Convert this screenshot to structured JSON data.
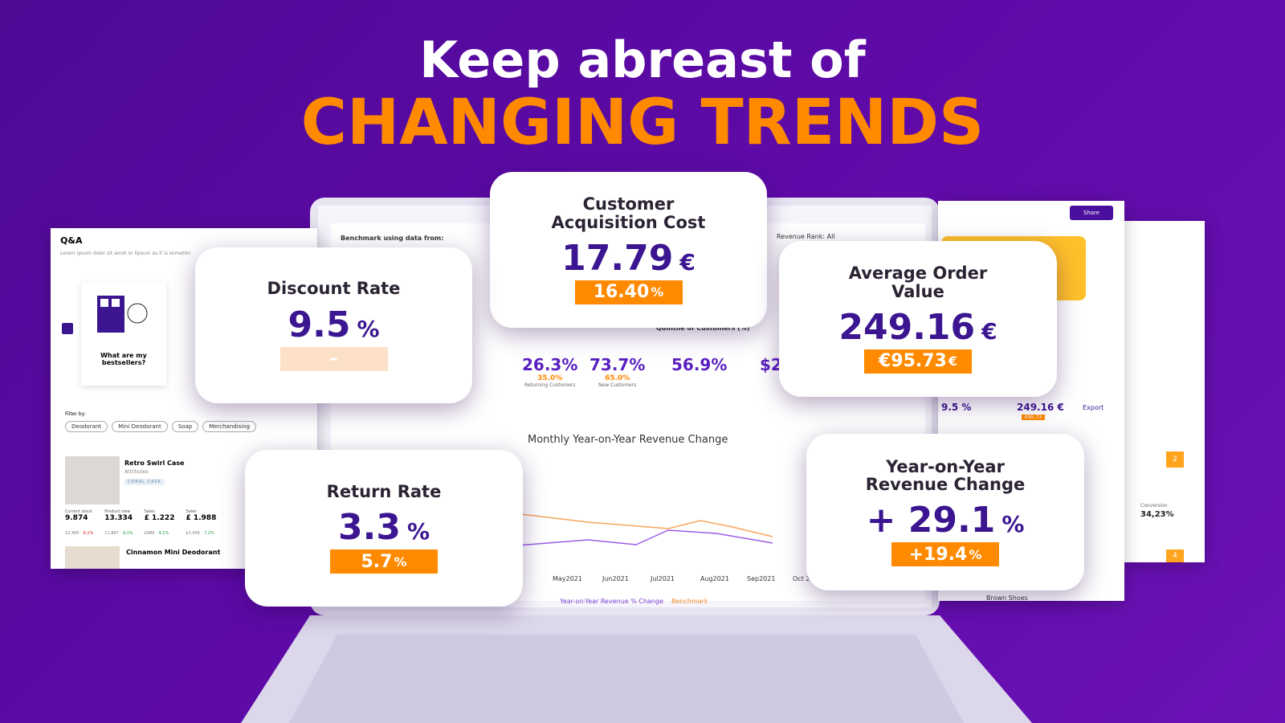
{
  "header": {
    "line1": "Keep abreast of",
    "line2": "CHANGING TRENDS"
  },
  "cards": [
    {
      "title": "Customer Acquisition Cost",
      "value": "17.79",
      "unit": "€",
      "badge": "16.40",
      "badge_unit": "%"
    },
    {
      "title": "Discount Rate",
      "value": "9.5",
      "unit": "%",
      "badge": "–"
    },
    {
      "title": "Average Order Value",
      "value": "249.16",
      "unit": "€",
      "badge": "€95.73",
      "badge_unit": "€"
    },
    {
      "title": "Return Rate",
      "value": "3.3",
      "unit": "%",
      "badge": "5.7",
      "badge_unit": "%"
    },
    {
      "title": "Year-on-Year Revenue Change",
      "value": "+ 29.1",
      "unit": "%",
      "badge": "+19.4",
      "badge_unit": "%"
    }
  ],
  "qa_panel": {
    "title": "Q&A",
    "subtitle": "Lorem ipsum dolor sit amet or lipsum as it is sometim",
    "question": "What are my bestsellers?",
    "filter_label": "Filter by:",
    "filters": [
      "Deodorant",
      "Mini Deodorant",
      "Soap",
      "Merchandising"
    ],
    "products": [
      {
        "name": "Retro Swirl Case",
        "attributes_label": "Attributes",
        "tag": "CORAL CASE",
        "stats": [
          {
            "label": "Current stock",
            "value": "9.874",
            "prev": "12.495",
            "change": "6,1%"
          },
          {
            "label": "Product view",
            "value": "13.334",
            "prev": "11.897",
            "change": "4,1%"
          },
          {
            "label": "Sales",
            "value": "£ 1.222",
            "prev": "£989",
            "change": "4,1%"
          },
          {
            "label": "Sales",
            "value": "£ 1.988",
            "prev": "£1.456",
            "change": "7,2%"
          }
        ]
      },
      {
        "name": "Cinnamon Mini Deodorant"
      }
    ]
  },
  "dashboard": {
    "benchmark_label": "Benchmark using data from:",
    "revenue_rank": "Revenue Rank: All",
    "quintile_label": "Quintile of Customers (%)",
    "metrics": [
      {
        "value": "26.3%",
        "benchmark": "35.0%",
        "label": "Returning Customers"
      },
      {
        "value": "73.7%",
        "benchmark": "65.0%",
        "label": "New Customers"
      },
      {
        "value": "56.9%"
      },
      {
        "value": "$2"
      }
    ],
    "chart_title": "Monthly Year-on-Year Revenue Change",
    "months": [
      "May2021",
      "Jun2021",
      "Jul2021",
      "Aug2021",
      "Sep2021",
      "Oct 2"
    ],
    "legend": [
      "Year-on-Year Revenue % Change",
      "Benchmark"
    ]
  },
  "right_panel": {
    "share": "Share",
    "export": "Export",
    "mini_values": [
      "9.5 %",
      "249.16 €"
    ],
    "mini_badge": "€95.73",
    "ranks": [
      "2",
      "4"
    ],
    "conversion_label": "Conversion",
    "conversion": "34,23%",
    "product": "Brown Shoes"
  }
}
